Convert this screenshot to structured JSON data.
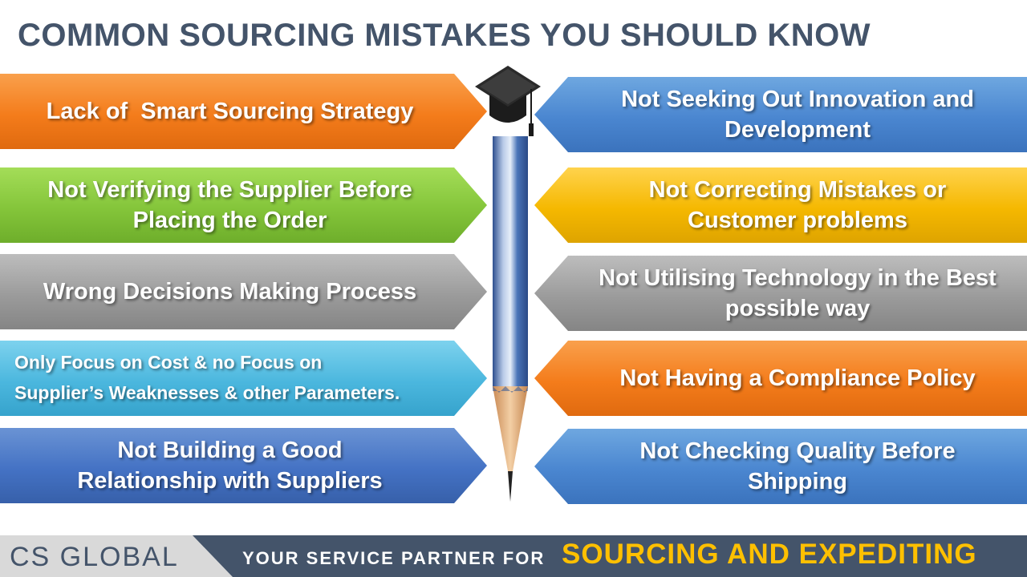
{
  "title": "COMMON SOURCING MISTAKES YOU SHOULD KNOW",
  "colors": {
    "title": "#44546a",
    "orange": "#f47c1b",
    "green": "#84c53a",
    "gray": "#9b9b9b",
    "cyan": "#4bb7de",
    "blue": "#4472c4",
    "yellow": "#f5b800",
    "light_blue": "#4a86d0",
    "footer": "#44546a",
    "accent": "#ffc000"
  },
  "left_items": [
    {
      "lines": [
        "Lack of  Smart Sourcing Strategy"
      ],
      "color": "orange"
    },
    {
      "lines": [
        "Not Verifying the Supplier Before",
        "Placing the Order"
      ],
      "color": "green"
    },
    {
      "lines": [
        "Wrong Decisions Making Process"
      ],
      "color": "gray"
    },
    {
      "lines": [
        "Only Focus on Cost & no Focus on",
        "Supplier’s Weaknesses & other Parameters."
      ],
      "color": "cyan"
    },
    {
      "lines": [
        "Not Building a Good",
        "Relationship with Suppliers"
      ],
      "color": "blue"
    }
  ],
  "right_items": [
    {
      "lines": [
        "Not Seeking Out Innovation and",
        "Development"
      ],
      "color": "light_blue"
    },
    {
      "lines": [
        "Not Correcting Mistakes or",
        "Customer problems"
      ],
      "color": "yellow"
    },
    {
      "lines": [
        "Not Utilising Technology in the Best",
        "possible way"
      ],
      "color": "gray"
    },
    {
      "lines": [
        "Not Having a Compliance Policy"
      ],
      "color": "orange"
    },
    {
      "lines": [
        "Not Checking Quality Before",
        "Shipping"
      ],
      "color": "light_blue"
    }
  ],
  "center_icons": [
    "graduation-cap-icon",
    "pencil-icon"
  ],
  "footer": {
    "brand": "CS GLOBAL",
    "tagline": "YOUR SERVICE PARTNER FOR",
    "tagline_accent": "SOURCING AND EXPEDITING"
  }
}
